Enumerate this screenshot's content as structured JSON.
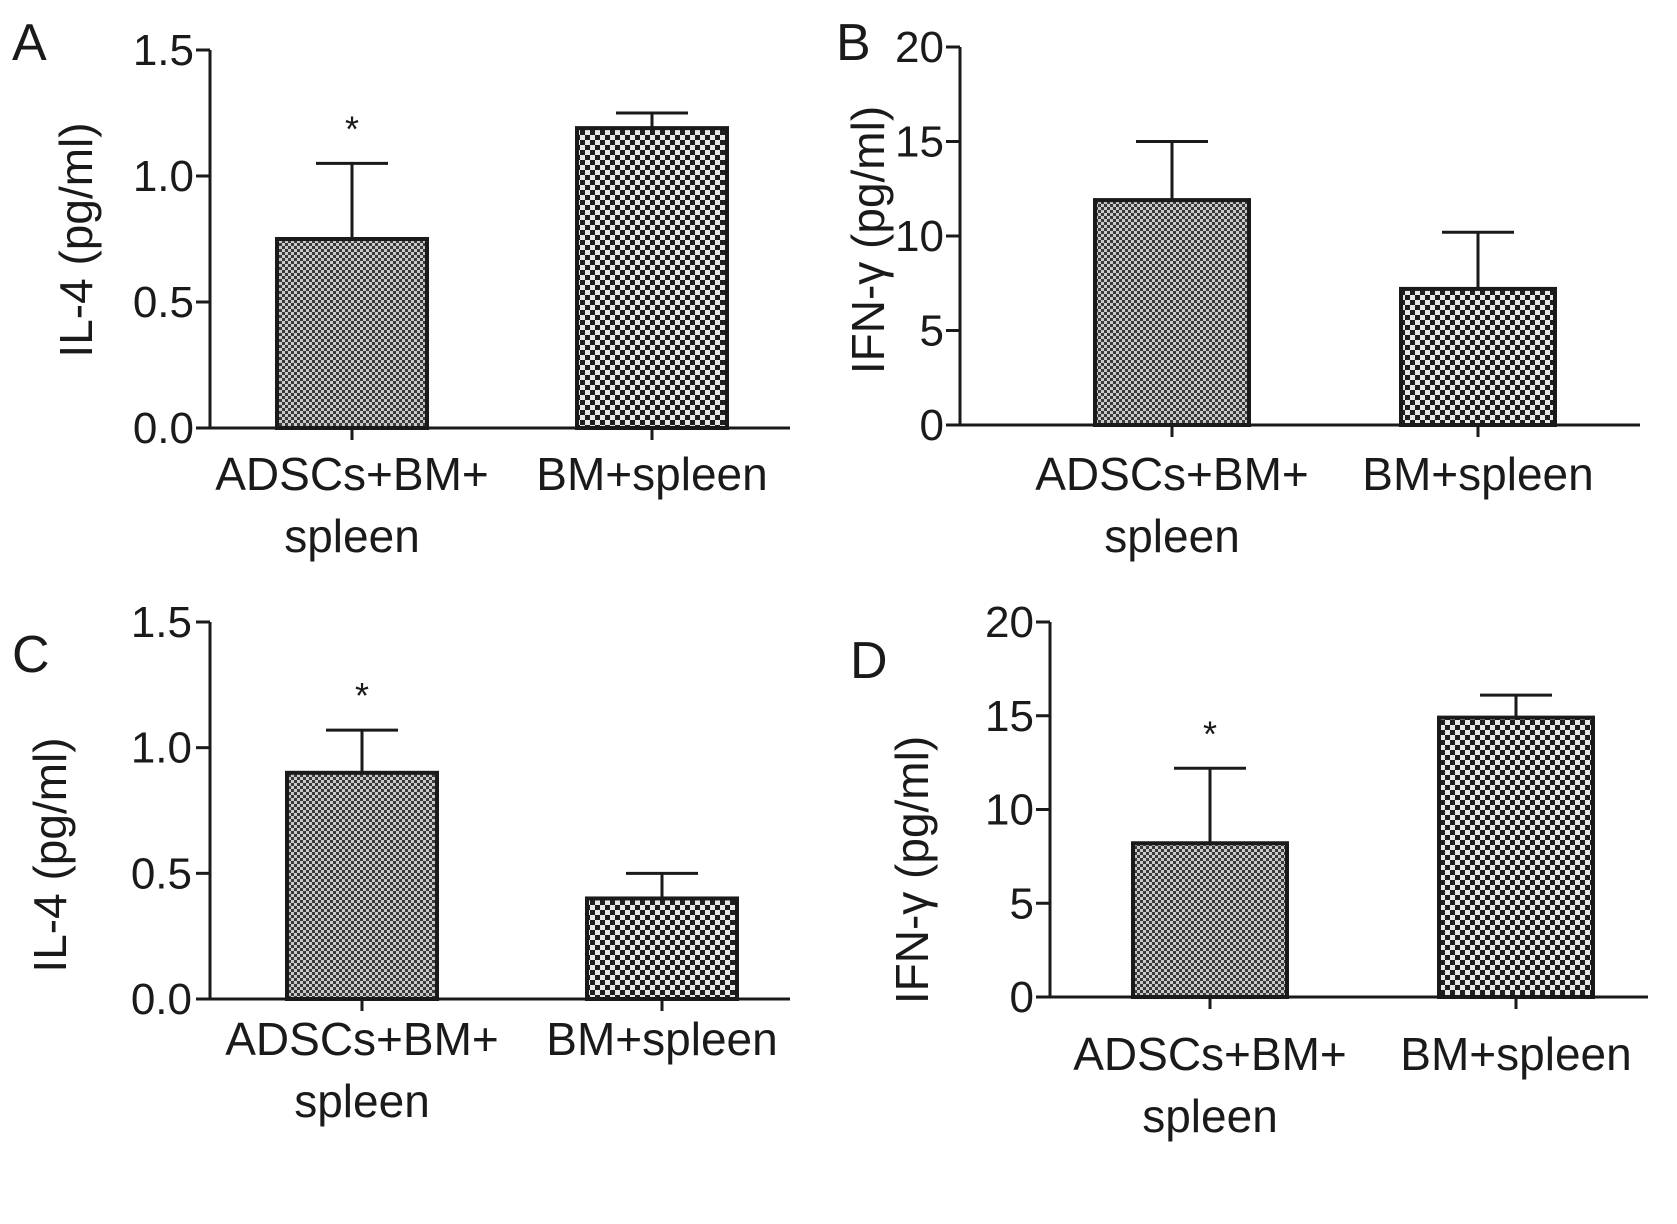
{
  "chart_data": [
    {
      "type": "bar",
      "panel": "A",
      "ylabel": "IL-4 (pg/ml)",
      "ylim": [
        0,
        1.5
      ],
      "yticks": [
        "0.0",
        "0.5",
        "1.0",
        "1.5"
      ],
      "yticks_values": [
        0,
        0.5,
        1.0,
        1.5
      ],
      "categories": [
        [
          "ADSCs+BM+",
          "spleen"
        ],
        [
          "BM+spleen"
        ]
      ],
      "values": [
        0.75,
        1.19
      ],
      "errors": [
        0.3,
        0.06
      ],
      "significance": [
        "*",
        ""
      ],
      "patterns": [
        "fine",
        "coarse"
      ]
    },
    {
      "type": "bar",
      "panel": "B",
      "ylabel": "IFN-γ (pg/ml)",
      "ylim": [
        0,
        20
      ],
      "yticks": [
        "0",
        "5",
        "10",
        "15",
        "20"
      ],
      "yticks_values": [
        0,
        5,
        10,
        15,
        20
      ],
      "categories": [
        [
          "ADSCs+BM+",
          "spleen"
        ],
        [
          "BM+spleen"
        ]
      ],
      "values": [
        11.9,
        7.2
      ],
      "errors": [
        3.1,
        3.0
      ],
      "significance": [
        "",
        ""
      ],
      "patterns": [
        "fine",
        "coarse"
      ]
    },
    {
      "type": "bar",
      "panel": "C",
      "ylabel": "IL-4 (pg/ml)",
      "ylim": [
        0,
        1.5
      ],
      "yticks": [
        "0.0",
        "0.5",
        "1.0",
        "1.5"
      ],
      "yticks_values": [
        0,
        0.5,
        1.0,
        1.5
      ],
      "categories": [
        [
          "ADSCs+BM+",
          "spleen"
        ],
        [
          "BM+spleen"
        ]
      ],
      "values": [
        0.9,
        0.4
      ],
      "errors": [
        0.17,
        0.1
      ],
      "significance": [
        "*",
        ""
      ],
      "patterns": [
        "fine",
        "coarse"
      ]
    },
    {
      "type": "bar",
      "panel": "D",
      "ylabel": "IFN-γ (pg/ml)",
      "ylim": [
        0,
        20
      ],
      "yticks": [
        "0",
        "5",
        "10",
        "15",
        "20"
      ],
      "yticks_values": [
        0,
        5,
        10,
        15,
        20
      ],
      "categories": [
        [
          "ADSCs+BM+",
          "spleen"
        ],
        [
          "BM+spleen"
        ]
      ],
      "values": [
        8.2,
        14.9
      ],
      "errors": [
        4.0,
        1.2
      ],
      "significance": [
        "*",
        ""
      ],
      "patterns": [
        "fine",
        "coarse"
      ]
    }
  ]
}
